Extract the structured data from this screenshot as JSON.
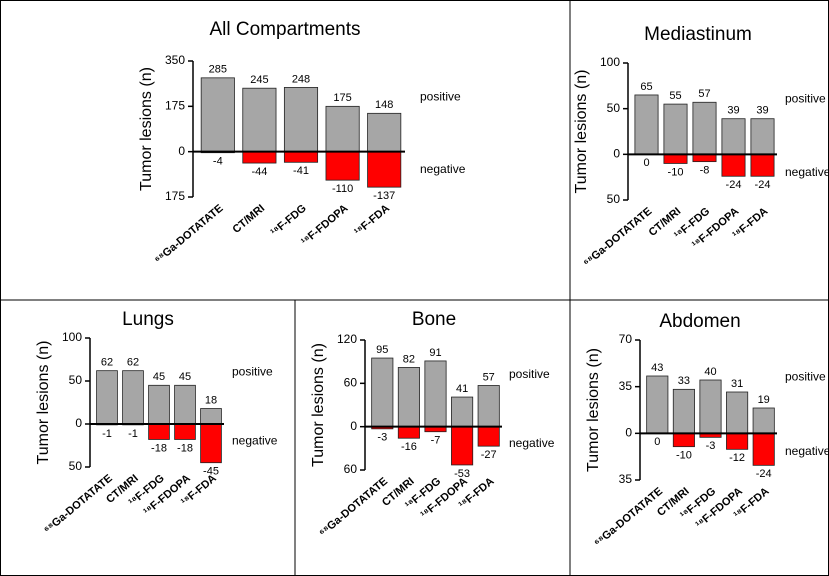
{
  "chart_data": [
    {
      "type": "bar",
      "title": "All Compartments",
      "ylabel": "Tumor lesions (n)",
      "categories": [
        "⁶⁸Ga-DOTATATE",
        "CT/MRI",
        "¹⁸F-FDG",
        "¹⁸F-FDOPA",
        "¹⁸F-FDA"
      ],
      "series": [
        {
          "name": "positive",
          "color": "#a6a6a6",
          "values": [
            285,
            245,
            248,
            175,
            148
          ]
        },
        {
          "name": "negative",
          "color": "#ff0000",
          "values": [
            -4,
            -44,
            -41,
            -110,
            -137
          ]
        }
      ],
      "ylim": [
        -175,
        350
      ],
      "yticks": [
        350,
        175,
        0,
        {
          "value": -175,
          "label": "175"
        }
      ]
    },
    {
      "type": "bar",
      "title": "Mediastinum",
      "ylabel": "Tumor lesions (n)",
      "categories": [
        "⁶⁸Ga-DOTATATE",
        "CT/MRI",
        "¹⁸F-FDG",
        "¹⁸F-FDOPA",
        "¹⁸F-FDA"
      ],
      "series": [
        {
          "name": "positive",
          "color": "#a6a6a6",
          "values": [
            65,
            55,
            57,
            39,
            39
          ]
        },
        {
          "name": "negative",
          "color": "#ff0000",
          "values": [
            0,
            -10,
            -8,
            -24,
            -24
          ]
        }
      ],
      "ylim": [
        -50,
        100
      ],
      "yticks": [
        100,
        50,
        0,
        {
          "value": -50,
          "label": "50"
        }
      ]
    },
    {
      "type": "bar",
      "title": "Lungs",
      "ylabel": "Tumor lesions (n)",
      "categories": [
        "⁶⁸Ga-DOTATATE",
        "CT/MRI",
        "¹⁸F-FDG",
        "¹⁸F-FDOPA",
        "¹⁸F-FDA"
      ],
      "series": [
        {
          "name": "positive",
          "color": "#a6a6a6",
          "values": [
            62,
            62,
            45,
            45,
            18
          ]
        },
        {
          "name": "negative",
          "color": "#ff0000",
          "values": [
            -1,
            -1,
            -18,
            -18,
            -45
          ]
        }
      ],
      "ylim": [
        -50,
        100
      ],
      "yticks": [
        100,
        50,
        0,
        {
          "value": -50,
          "label": "50"
        }
      ]
    },
    {
      "type": "bar",
      "title": "Bone",
      "ylabel": "Tumor lesions (n)",
      "categories": [
        "⁶⁸Ga-DOTATATE",
        "CT/MRI",
        "¹⁸F-FDG",
        "¹⁸F-FDOPA",
        "¹⁸F-FDA"
      ],
      "series": [
        {
          "name": "positive",
          "color": "#a6a6a6",
          "values": [
            95,
            82,
            91,
            41,
            57
          ]
        },
        {
          "name": "negative",
          "color": "#ff0000",
          "values": [
            -3,
            -16,
            -7,
            -53,
            -27
          ]
        }
      ],
      "ylim": [
        -60,
        120
      ],
      "yticks": [
        120,
        60,
        0,
        {
          "value": -60,
          "label": "60"
        }
      ]
    },
    {
      "type": "bar",
      "title": "Abdomen",
      "ylabel": "Tumor lesions (n)",
      "categories": [
        "⁶⁸Ga-DOTATATE",
        "CT/MRI",
        "¹⁸F-FDG",
        "¹⁸F-FDOPA",
        "¹⁸F-FDA"
      ],
      "series": [
        {
          "name": "positive",
          "color": "#a6a6a6",
          "values": [
            43,
            33,
            40,
            31,
            19
          ]
        },
        {
          "name": "negative",
          "color": "#ff0000",
          "values": [
            0,
            -10,
            -3,
            -12,
            -24
          ]
        }
      ],
      "ylim": [
        -35,
        70
      ],
      "yticks": [
        70,
        35,
        0,
        {
          "value": -35,
          "label": "35"
        }
      ]
    }
  ]
}
